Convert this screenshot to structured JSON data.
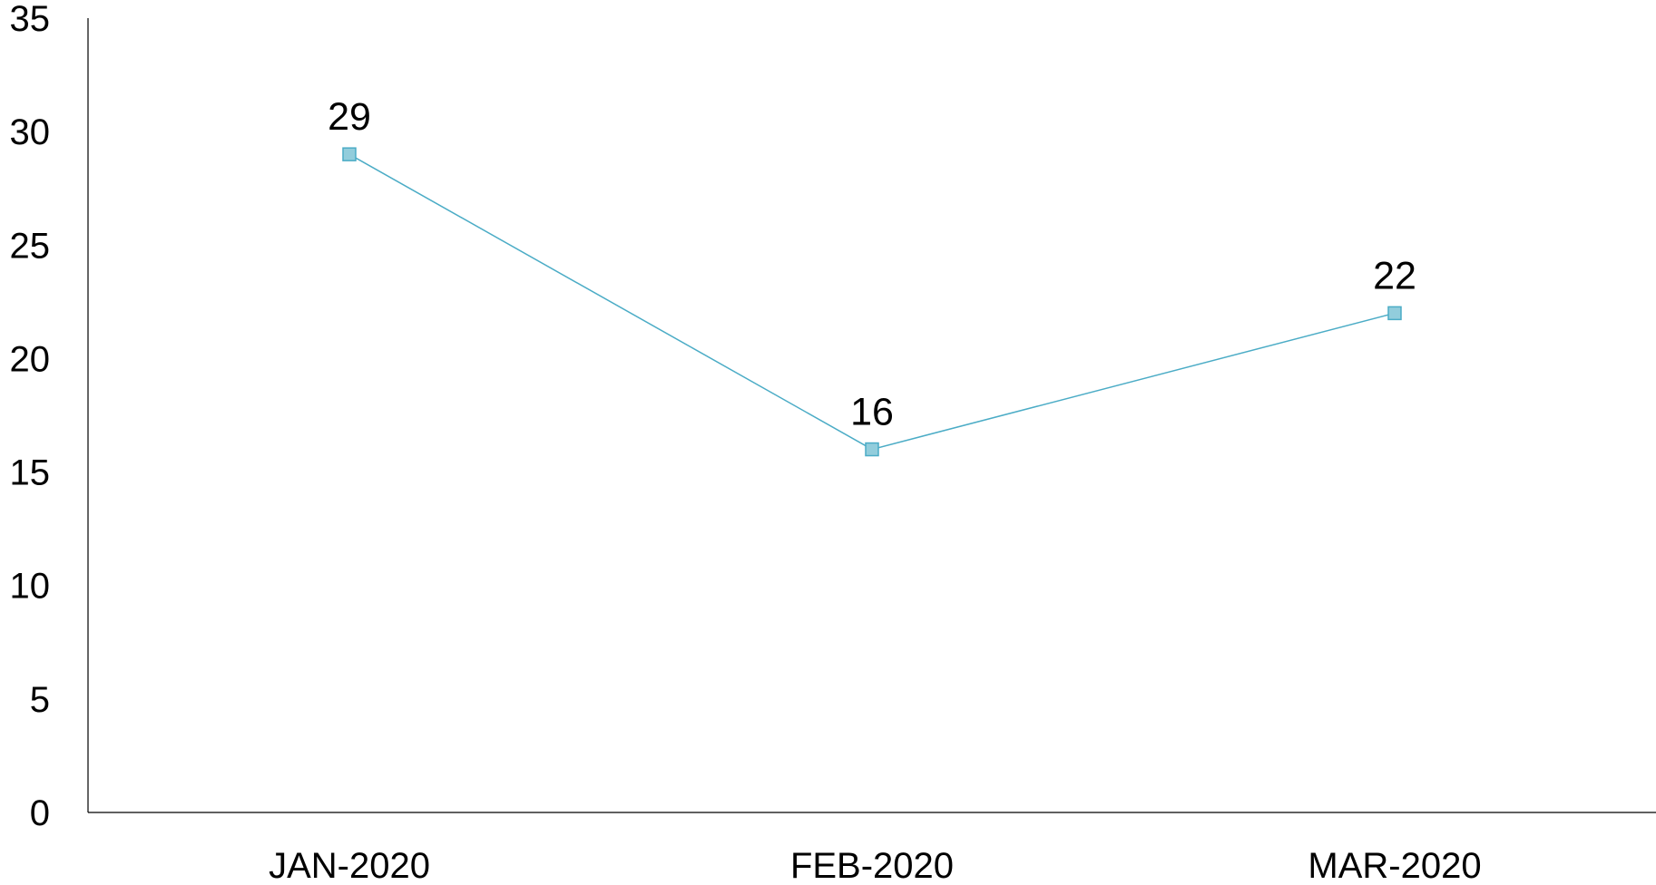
{
  "chart_data": {
    "type": "line",
    "title": "",
    "xlabel": "",
    "ylabel": "",
    "categories": [
      "JAN-2020",
      "FEB-2020",
      "MAR-2020"
    ],
    "series": [
      {
        "values": [
          29,
          16,
          22
        ],
        "color": "#4bacc6",
        "marker": "square",
        "marker_fill": "#92cddc",
        "data_labels": [
          "29",
          "16",
          "22"
        ]
      }
    ],
    "ylim": [
      0,
      35
    ],
    "yticks": [
      "0",
      "5",
      "10",
      "15",
      "20",
      "25",
      "30",
      "35"
    ],
    "grid": false,
    "legend": "none"
  }
}
